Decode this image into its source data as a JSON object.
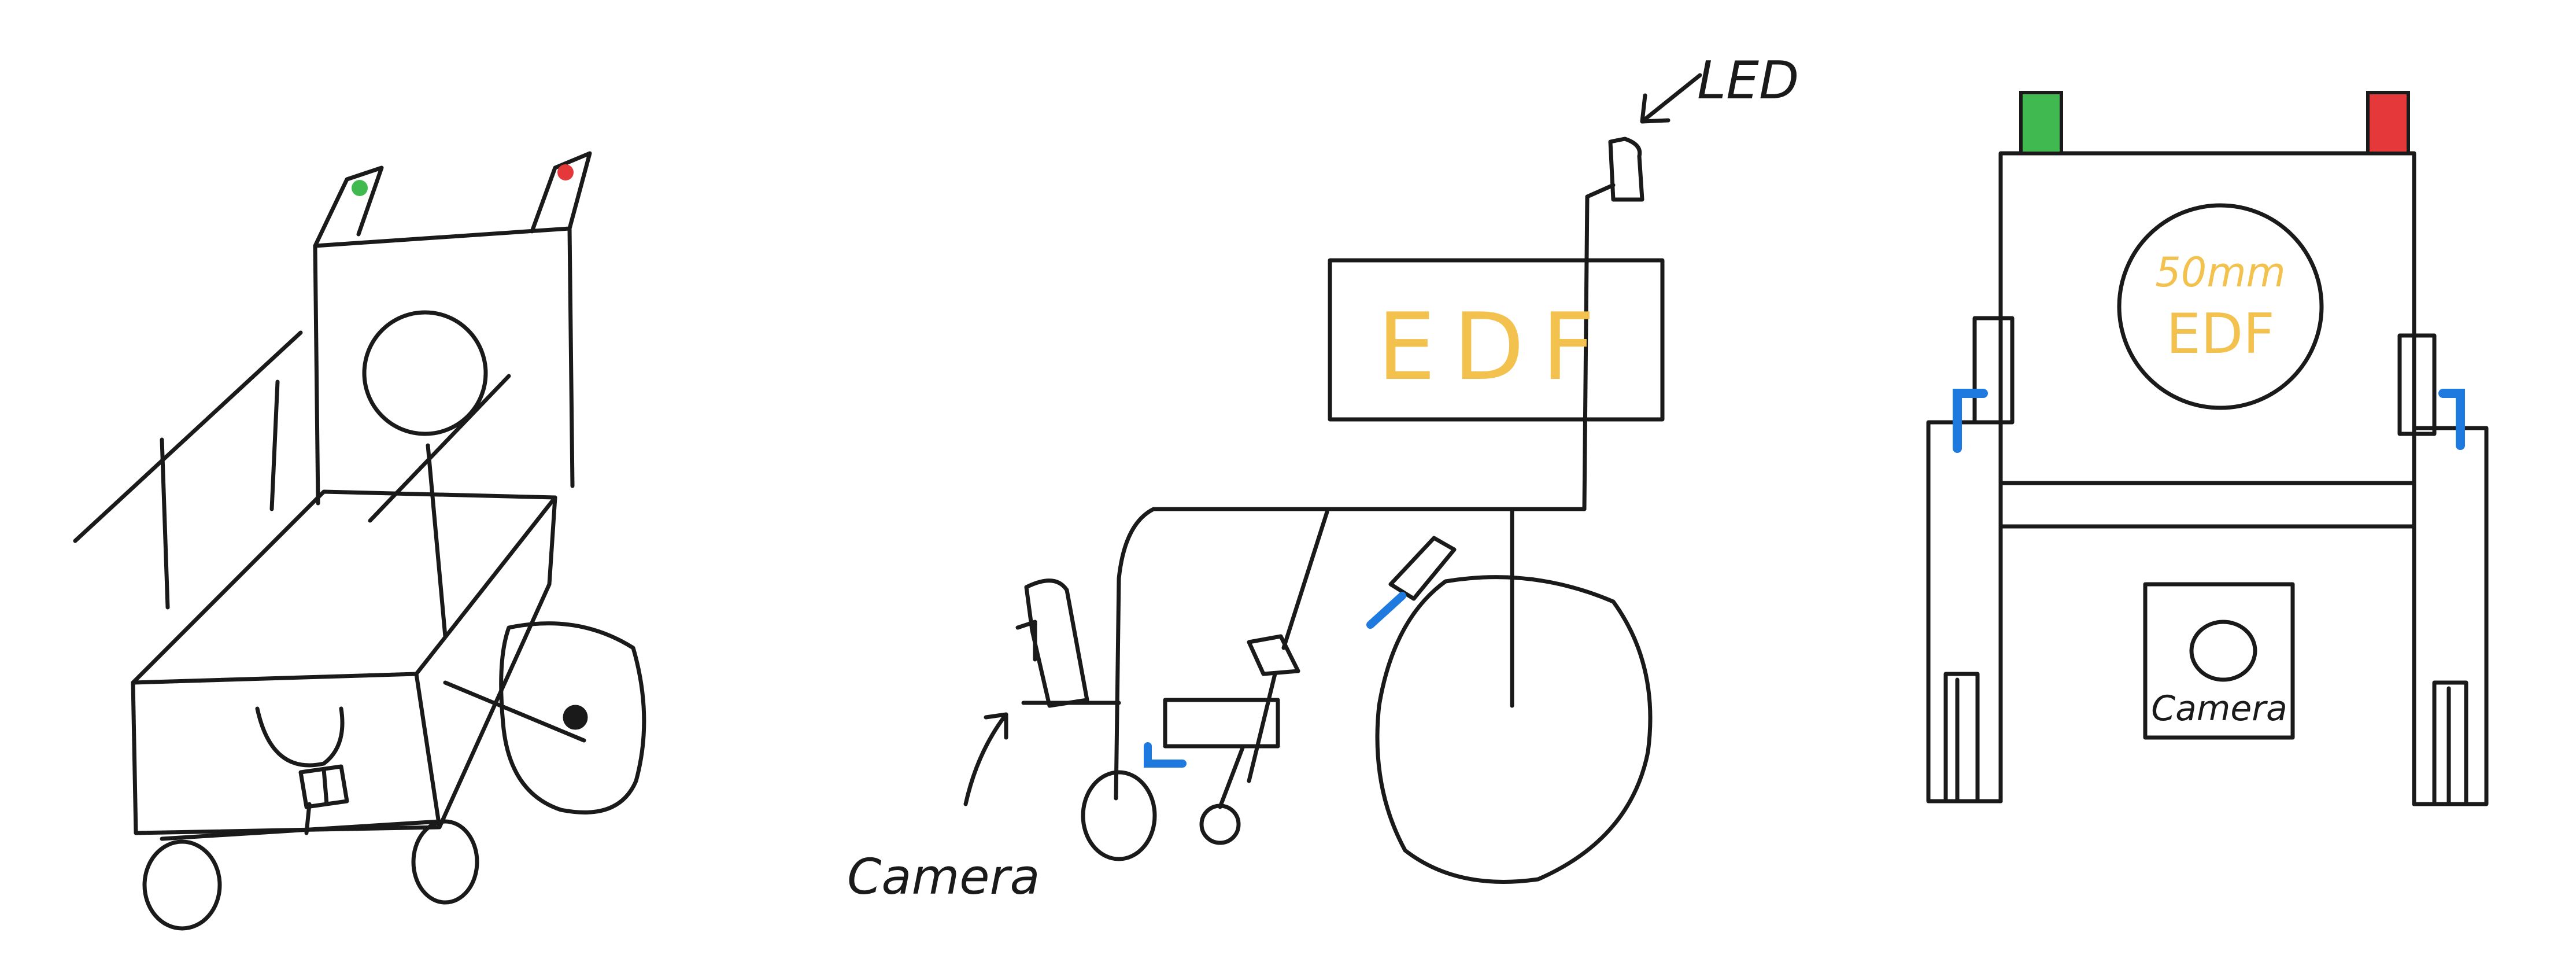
{
  "diagram": {
    "views": [
      {
        "id": "perspective",
        "label": ""
      },
      {
        "id": "side",
        "label": ""
      },
      {
        "id": "front",
        "label": ""
      }
    ],
    "labels": {
      "led": "LED",
      "edf_side": "EDF",
      "edf_size": "50mm",
      "edf_front": "EDF",
      "camera_side": "Camera",
      "camera_front": "Camera"
    },
    "colors": {
      "ink": "#1a1a1a",
      "edf_text": "#f2c14e",
      "led_green": "#3fb950",
      "led_red": "#e5383b",
      "accent_blue": "#1f7ae0"
    }
  }
}
